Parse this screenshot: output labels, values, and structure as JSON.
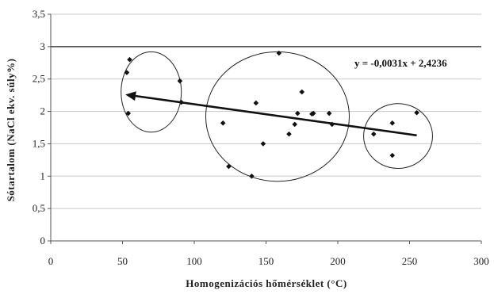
{
  "chart_data": {
    "type": "scatter",
    "xlabel": "Homogenizációs hőmérséklet (°C)",
    "ylabel": "Sótartalom (NaCl ekv. súly%)",
    "xlim": [
      0,
      300
    ],
    "ylim": [
      0,
      3.5
    ],
    "x_ticks": [
      "0",
      "50",
      "100",
      "150",
      "200",
      "250",
      "300"
    ],
    "y_ticks": [
      "0",
      "0,5",
      "1",
      "1,5",
      "2",
      "2,5",
      "3",
      "3,5"
    ],
    "grid": "horizontal",
    "reference_line_y": 3,
    "points": [
      {
        "x": 53,
        "y": 2.6
      },
      {
        "x": 55,
        "y": 2.8
      },
      {
        "x": 54,
        "y": 1.97
      },
      {
        "x": 90,
        "y": 2.47
      },
      {
        "x": 91,
        "y": 2.14
      },
      {
        "x": 120,
        "y": 1.82
      },
      {
        "x": 124,
        "y": 1.15
      },
      {
        "x": 140,
        "y": 1.0
      },
      {
        "x": 143,
        "y": 2.13
      },
      {
        "x": 148,
        "y": 1.5
      },
      {
        "x": 159,
        "y": 2.9
      },
      {
        "x": 166,
        "y": 1.65
      },
      {
        "x": 170,
        "y": 1.8
      },
      {
        "x": 172,
        "y": 1.97
      },
      {
        "x": 175,
        "y": 2.3
      },
      {
        "x": 182,
        "y": 1.96
      },
      {
        "x": 183,
        "y": 1.97
      },
      {
        "x": 194,
        "y": 1.97
      },
      {
        "x": 196,
        "y": 1.8
      },
      {
        "x": 225,
        "y": 1.65
      },
      {
        "x": 238,
        "y": 1.82
      },
      {
        "x": 238,
        "y": 1.32
      },
      {
        "x": 255,
        "y": 1.98
      }
    ],
    "trendline": {
      "equation": "y = -0,0031x + 2,4236",
      "x_start": 255,
      "y_start": 1.63,
      "x_end": 52,
      "y_end": 2.26,
      "arrow": true
    },
    "clusters": [
      {
        "cx": 70,
        "cy": 2.3,
        "rx": 21,
        "ry": 0.62
      },
      {
        "cx": 158,
        "cy": 1.92,
        "rx": 50,
        "ry": 1.0
      },
      {
        "cx": 242,
        "cy": 1.62,
        "rx": 24,
        "ry": 0.5
      }
    ],
    "colors": {
      "marker": "#111111",
      "line": "#111111",
      "grid": "#c8c8c8",
      "axis": "#555555"
    }
  }
}
